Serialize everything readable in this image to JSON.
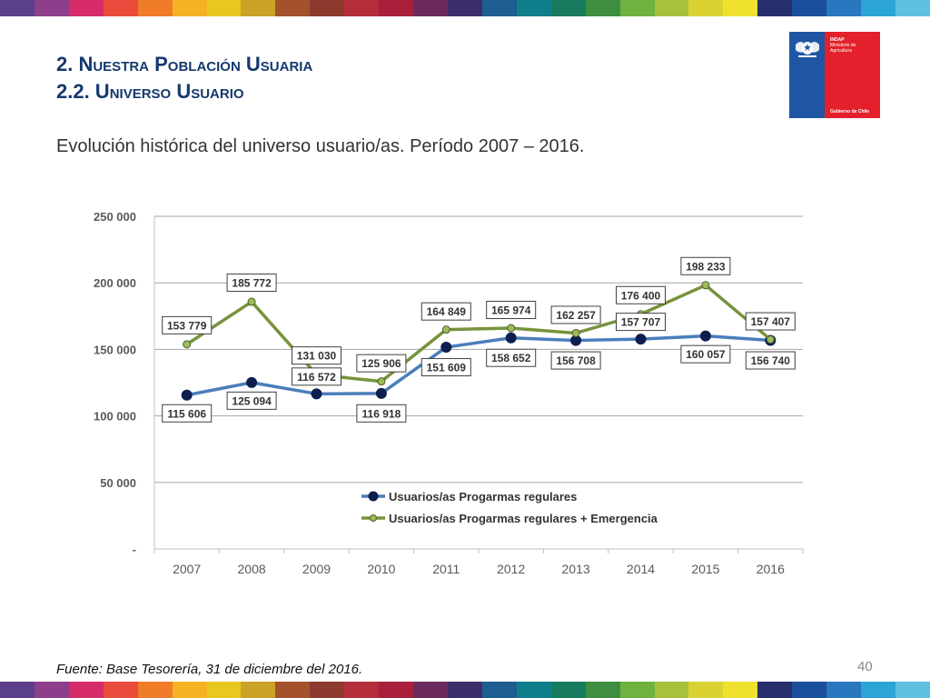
{
  "header": {
    "section": "2. Nuestra Población Usuaria",
    "subsection": "2.2. Universo Usuario"
  },
  "subtitle": "Evolución histórica del universo usuario/as. Período 2007 – 2016.",
  "logo": {
    "org": "INDAP",
    "org_sub": "Ministerio de Agricultura",
    "government": "Gobierno de Chile"
  },
  "source": "Fuente: Base Tesorería, 31 de diciembre del 2016.",
  "page_number": "40",
  "colors": {
    "regular": "#4a7ebb",
    "regular_marker": "#0d1f4f",
    "emergency": "#77933c",
    "emergency_marker": "#9bbb59",
    "gridline": "#a6a6a6"
  },
  "stripe_colors": [
    "#5b3f8c",
    "#8e3f8c",
    "#d72c6a",
    "#e94b3c",
    "#f07c2a",
    "#f4b322",
    "#e8c81e",
    "#c9a227",
    "#a4522c",
    "#8c3a2d",
    "#b32d3b",
    "#a8203c",
    "#6a2b5c",
    "#3d2d6b",
    "#1d5d8f",
    "#0f7f8b",
    "#167c5d",
    "#3e8e41",
    "#6fb23f",
    "#a6c13b",
    "#d9d232",
    "#efe12e",
    "#262f6c",
    "#1a4f9c",
    "#2a76bf",
    "#2ba5d6",
    "#5fc0e0"
  ],
  "chart_data": {
    "type": "line",
    "categories": [
      "2007",
      "2008",
      "2009",
      "2010",
      "2011",
      "2012",
      "2013",
      "2014",
      "2015",
      "2016"
    ],
    "ylim": [
      0,
      250000
    ],
    "yticks": [
      0,
      50000,
      100000,
      150000,
      200000,
      250000
    ],
    "ytick_labels": [
      "-",
      "50 000",
      "100 000",
      "150 000",
      "200 000",
      "250 000"
    ],
    "grid": true,
    "legend_position": "bottom-center",
    "series": [
      {
        "name": "Usuarios/as Progarmas regulares",
        "values": [
          115606,
          125094,
          116572,
          116918,
          151609,
          158652,
          156708,
          157707,
          160057,
          156740
        ],
        "labels": [
          "115 606",
          "125 094",
          "116 572",
          "116 918",
          "151 609",
          "158 652",
          "156 708",
          "157 707",
          "160 057",
          "156 740"
        ]
      },
      {
        "name": "Usuarios/as Progarmas regulares + Emergencia",
        "values": [
          153779,
          185772,
          131030,
          125906,
          164849,
          165974,
          162257,
          176400,
          198233,
          157407
        ],
        "labels": [
          "153 779",
          "185 772",
          "131 030",
          "125 906",
          "164 849",
          "165 974",
          "162 257",
          "176 400",
          "198 233",
          "157 407"
        ]
      }
    ]
  }
}
